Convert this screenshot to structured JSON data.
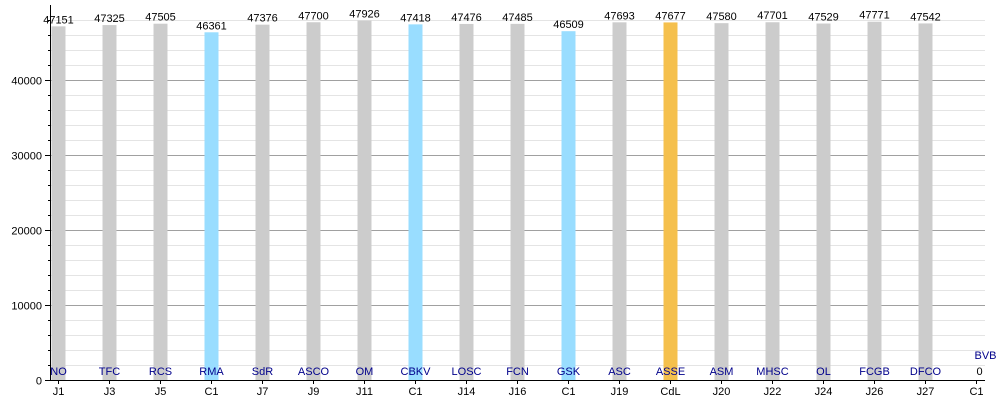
{
  "chart_data": {
    "type": "bar",
    "ylim": [
      0,
      50000
    ],
    "yticks": [
      0,
      10000,
      20000,
      30000,
      40000
    ],
    "grid": true,
    "bars": [
      {
        "category": "J1",
        "team": "NO",
        "value": 47151,
        "color": "#cccccc"
      },
      {
        "category": "J3",
        "team": "TFC",
        "value": 47325,
        "color": "#cccccc"
      },
      {
        "category": "J5",
        "team": "RCS",
        "value": 47505,
        "color": "#cccccc"
      },
      {
        "category": "C1",
        "team": "RMA",
        "value": 46361,
        "color": "#99ddff"
      },
      {
        "category": "J7",
        "team": "SdR",
        "value": 47376,
        "color": "#cccccc"
      },
      {
        "category": "J9",
        "team": "ASCO",
        "value": 47700,
        "color": "#cccccc"
      },
      {
        "category": "J11",
        "team": "OM",
        "value": 47926,
        "color": "#cccccc"
      },
      {
        "category": "C1",
        "team": "CBKV",
        "value": 47418,
        "color": "#99ddff"
      },
      {
        "category": "J14",
        "team": "LOSC",
        "value": 47476,
        "color": "#cccccc"
      },
      {
        "category": "J16",
        "team": "FCN",
        "value": 47485,
        "color": "#cccccc"
      },
      {
        "category": "C1",
        "team": "GSK",
        "value": 46509,
        "color": "#99ddff"
      },
      {
        "category": "J19",
        "team": "ASC",
        "value": 47693,
        "color": "#cccccc"
      },
      {
        "category": "CdL",
        "team": "ASSE",
        "value": 47677,
        "color": "#f5c04d"
      },
      {
        "category": "J20",
        "team": "ASM",
        "value": 47580,
        "color": "#cccccc"
      },
      {
        "category": "J22",
        "team": "MHSC",
        "value": 47701,
        "color": "#cccccc"
      },
      {
        "category": "J24",
        "team": "OL",
        "value": 47529,
        "color": "#cccccc"
      },
      {
        "category": "J26",
        "team": "FCGB",
        "value": 47771,
        "color": "#cccccc"
      },
      {
        "category": "J27",
        "team": "DFCO",
        "value": 47542,
        "color": "#cccccc"
      },
      {
        "category": "C1",
        "team": "BVB",
        "value": 0,
        "color": "#99ddff"
      }
    ]
  }
}
